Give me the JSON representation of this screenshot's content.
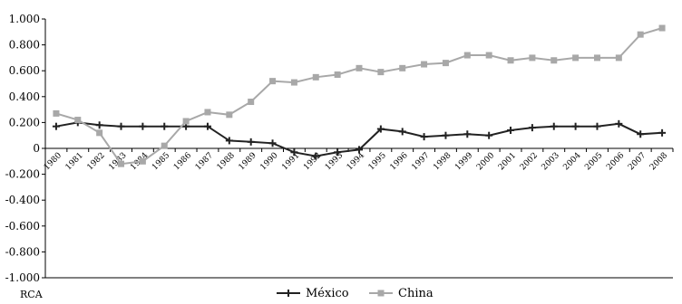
{
  "chart_data": {
    "type": "line",
    "x": [
      "1980",
      "1981",
      "1982",
      "1983",
      "1984",
      "1985",
      "1986",
      "1987",
      "1988",
      "1989",
      "1990",
      "1991",
      "1992",
      "1993",
      "1994",
      "1995",
      "1996",
      "1997",
      "1998",
      "1999",
      "2000",
      "2001",
      "2002",
      "2003",
      "2004",
      "2005",
      "2006",
      "2007",
      "2008"
    ],
    "series": [
      {
        "name": "México",
        "color": "#222222",
        "marker": "cross",
        "values": [
          0.17,
          0.2,
          0.18,
          0.17,
          0.17,
          0.17,
          0.17,
          0.17,
          0.06,
          0.05,
          0.04,
          -0.03,
          -0.06,
          -0.03,
          -0.01,
          0.15,
          0.13,
          0.09,
          0.1,
          0.11,
          0.1,
          0.14,
          0.16,
          0.17,
          0.17,
          0.17,
          0.19,
          0.11,
          0.12
        ]
      },
      {
        "name": "China",
        "color": "#a8a8a8",
        "marker": "square",
        "values": [
          0.27,
          0.22,
          0.12,
          -0.12,
          -0.1,
          0.02,
          0.21,
          0.28,
          0.26,
          0.36,
          0.52,
          0.51,
          0.55,
          0.57,
          0.62,
          0.59,
          0.62,
          0.65,
          0.66,
          0.72,
          0.72,
          0.68,
          0.7,
          0.68,
          0.7,
          0.7,
          0.7,
          0.88,
          0.93
        ]
      }
    ],
    "yticks": [
      "1.000",
      "0.800",
      "0.600",
      "0.400",
      "0.200",
      "0",
      "-0.200",
      "-0.400",
      "-0.600",
      "-0.800",
      "-1.000"
    ],
    "ylim": [
      -1.0,
      1.0
    ],
    "title": "",
    "xlabel": "",
    "ylabel": "",
    "legend_position": "bottom-center",
    "footnote": "RCA"
  }
}
